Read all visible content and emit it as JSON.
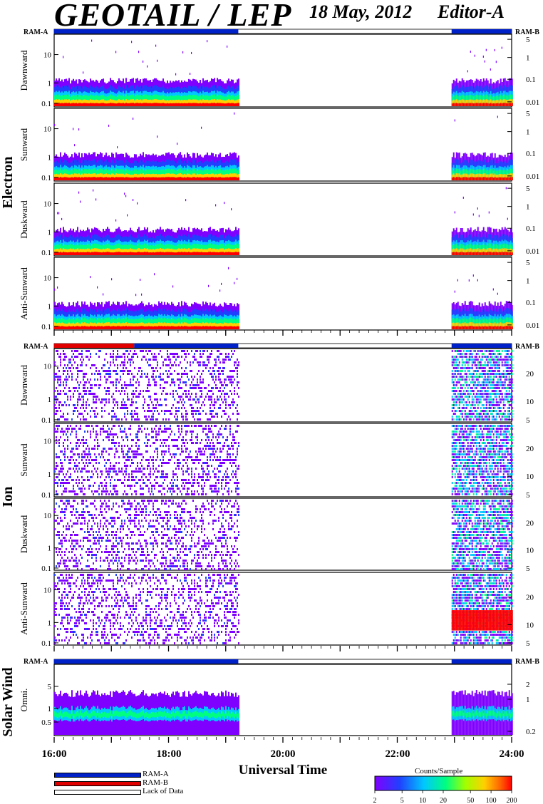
{
  "header": {
    "title": "GEOTAIL / LEP",
    "date": "18 May, 2012",
    "editor": "Editor-A"
  },
  "group_labels": {
    "electron": "Electron",
    "ion": "Ion",
    "solar_wind": "Solar Wind"
  },
  "ram_labels": {
    "a": "RAM-A",
    "b": "RAM-B"
  },
  "colors": {
    "ram_a": "#0020c8",
    "ram_b": "#e00000",
    "lack_of_data": "#ffffff",
    "background": "#ffffff"
  },
  "legend": {
    "ram_a": "RAM-A",
    "ram_b": "RAM-B",
    "lack_of_data": "Lack of Data"
  },
  "colorbar": {
    "title": "Counts/Sample",
    "ticks": [
      "2",
      "5",
      "10",
      "20",
      "50",
      "100",
      "200"
    ],
    "range": [
      2,
      200
    ],
    "scale": "log",
    "colormap": "rainbow-violet-to-red"
  },
  "chart_data": {
    "type": "heatmap",
    "xlabel": "Universal Time",
    "x_ticks": [
      "16:00",
      "18:00",
      "20:00",
      "22:00",
      "24:00"
    ],
    "x_range_hours": [
      16,
      24
    ],
    "data_coverage_hours": [
      [
        16.0,
        19.22
      ],
      [
        22.95,
        24.0
      ]
    ],
    "ram_state_bars": [
      {
        "panel_group": "electron",
        "segments": [
          {
            "from": 16.0,
            "to": 19.22,
            "mode": "ram_a"
          },
          {
            "from": 22.95,
            "to": 24.0,
            "mode": "ram_a"
          }
        ]
      },
      {
        "panel_group": "ion",
        "segments": [
          {
            "from": 16.0,
            "to": 17.4,
            "mode": "ram_b"
          },
          {
            "from": 17.4,
            "to": 19.22,
            "mode": "ram_a"
          },
          {
            "from": 22.95,
            "to": 24.0,
            "mode": "ram_a"
          }
        ]
      },
      {
        "panel_group": "solar_wind",
        "segments": [
          {
            "from": 16.0,
            "to": 19.22,
            "mode": "ram_a"
          },
          {
            "from": 22.95,
            "to": 24.0,
            "mode": "ram_a"
          }
        ]
      }
    ],
    "panels": [
      {
        "group": "electron",
        "label": "Dawnward",
        "left_ticks": [
          "10",
          "1",
          "0.1"
        ],
        "right_ticks": [
          "5",
          "1",
          "0.1",
          "0.01"
        ]
      },
      {
        "group": "electron",
        "label": "Sunward",
        "left_ticks": [
          "10",
          "1",
          "0.1"
        ],
        "right_ticks": [
          "5",
          "1",
          "0.1",
          "0.01"
        ]
      },
      {
        "group": "electron",
        "label": "Duskward",
        "left_ticks": [
          "10",
          "1",
          "0.1"
        ],
        "right_ticks": [
          "5",
          "1",
          "0.1",
          "0.01"
        ]
      },
      {
        "group": "electron",
        "label": "Anti-Sunward",
        "left_ticks": [
          "10",
          "1",
          "0.1"
        ],
        "right_ticks": [
          "5",
          "1",
          "0.1",
          "0.01"
        ]
      },
      {
        "group": "ion",
        "label": "Dawnward",
        "left_ticks": [
          "10",
          "1",
          "0.1"
        ],
        "right_ticks": [
          "20",
          "10",
          "5"
        ]
      },
      {
        "group": "ion",
        "label": "Sunward",
        "left_ticks": [
          "10",
          "1",
          "0.1"
        ],
        "right_ticks": [
          "20",
          "10",
          "5"
        ]
      },
      {
        "group": "ion",
        "label": "Duskward",
        "left_ticks": [
          "10",
          "1",
          "0.1"
        ],
        "right_ticks": [
          "20",
          "10",
          "5"
        ]
      },
      {
        "group": "ion",
        "label": "Anti-Sunward",
        "left_ticks": [
          "10",
          "1",
          "0.1"
        ],
        "right_ticks": [
          "20",
          "10",
          "5"
        ]
      },
      {
        "group": "solar_wind",
        "label": "Omni.",
        "left_ticks": [
          "5",
          "1",
          "0.5"
        ],
        "right_ticks": [
          "2",
          "1",
          "0.2"
        ]
      }
    ]
  }
}
